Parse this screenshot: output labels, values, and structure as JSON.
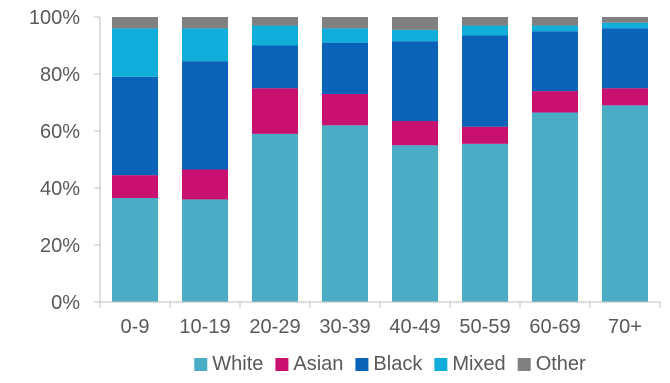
{
  "chart_data": {
    "type": "bar",
    "stacked": true,
    "percent": true,
    "categories": [
      "0-9",
      "10-19",
      "20-29",
      "30-39",
      "40-49",
      "50-59",
      "60-69",
      "70+"
    ],
    "series": [
      {
        "name": "White",
        "color": "#4BACC6",
        "values": [
          36.5,
          36,
          59,
          62,
          55,
          55.5,
          66.5,
          69
        ]
      },
      {
        "name": "Asian",
        "color": "#C7106F",
        "values": [
          8,
          10.5,
          16,
          11,
          8.5,
          6,
          7.5,
          6
        ]
      },
      {
        "name": "Black",
        "color": "#0A63B8",
        "values": [
          34.5,
          38,
          15,
          18,
          28,
          32,
          21,
          21
        ]
      },
      {
        "name": "Mixed",
        "color": "#11AEDB",
        "values": [
          17,
          11.5,
          7,
          5,
          4,
          3.5,
          2,
          2
        ]
      },
      {
        "name": "Other",
        "color": "#808080",
        "values": [
          4,
          4,
          3,
          4,
          4.5,
          3,
          3,
          2
        ]
      }
    ],
    "ylim": [
      0,
      100
    ],
    "yticks": [
      "0%",
      "20%",
      "40%",
      "60%",
      "80%",
      "100%"
    ],
    "grid": false,
    "legend_position": "bottom"
  }
}
